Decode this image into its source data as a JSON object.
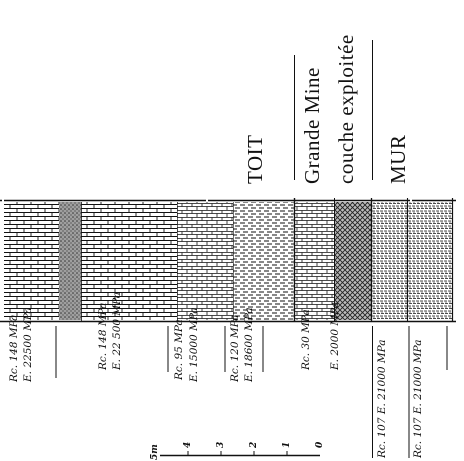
{
  "headings": {
    "toit": "TOIT",
    "grande_mine": "Grande Mine",
    "couche": "couche exploitée",
    "mur": "MUR"
  },
  "measurements": [
    {
      "text": "Rc. 148 MPa",
      "group": "top"
    },
    {
      "text": "E. 22500 MPa",
      "group": "top"
    },
    {
      "text": "Rc. 148 MPa",
      "group": "toit2"
    },
    {
      "text": "E. 22 500 MPa",
      "group": "toit2"
    },
    {
      "text": "Rc. 95 MPa",
      "group": "toit3"
    },
    {
      "text": "E. 15000 MPa",
      "group": "toit3"
    },
    {
      "text": "Rc. 120 MPa",
      "group": "toit4"
    },
    {
      "text": "E. 18600 MPa",
      "group": "toit4"
    },
    {
      "text": "Rc. 30 MPa",
      "group": "couche"
    },
    {
      "text": "E. 2000 MPa",
      "group": "couche"
    },
    {
      "text": "Rc. 107 E. 21000 MPa",
      "group": "mur1"
    },
    {
      "text": "Rc. 107 E. 21000 MPa",
      "group": "mur2"
    }
  ],
  "scale": {
    "unit": "5m",
    "ticks": [
      "4",
      "3",
      "2",
      "1",
      "0"
    ]
  },
  "colors": {
    "ink": "#111111",
    "paper": "#ffffff"
  }
}
